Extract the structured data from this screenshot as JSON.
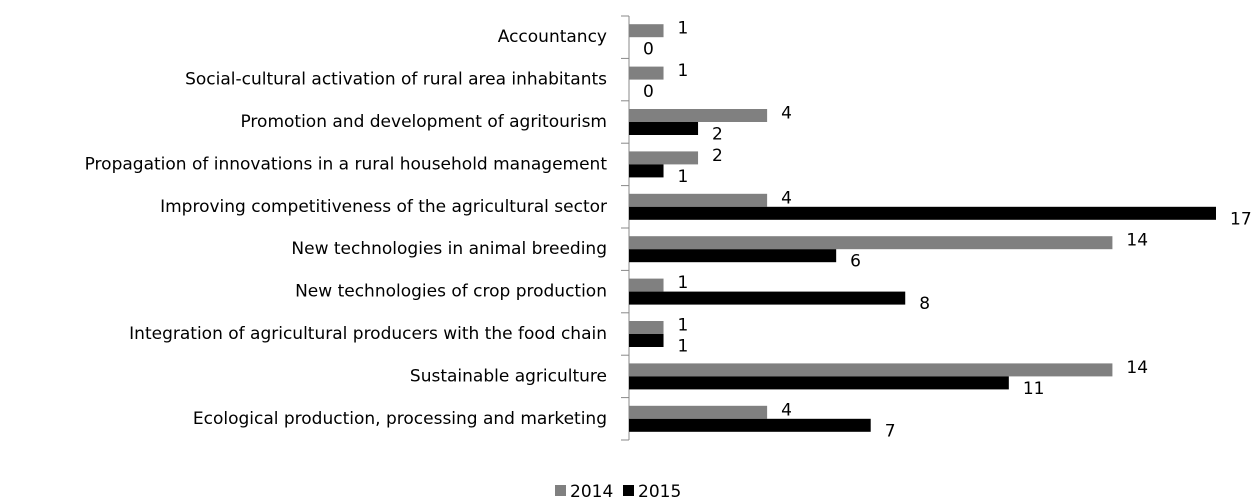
{
  "chart_data": {
    "type": "bar",
    "orientation": "horizontal",
    "categories": [
      "Accountancy",
      "Social-cultural activation of rural area inhabitants",
      "Promotion and development of agritourism",
      "Propagation of innovations in a rural household management",
      "Improving  competitiveness of the agricultural sector",
      "New technologies in animal breeding",
      "New technologies of crop production",
      "Integration of agricultural producers with the food chain",
      "Sustainable agriculture",
      "Ecological production, processing and marketing"
    ],
    "series": [
      {
        "name": "2014",
        "color": "#808080",
        "values": [
          1,
          1,
          4,
          2,
          4,
          14,
          1,
          1,
          14,
          4
        ]
      },
      {
        "name": "2015",
        "color": "#000000",
        "values": [
          0,
          0,
          2,
          1,
          17,
          6,
          8,
          1,
          11,
          7
        ]
      }
    ],
    "legend": "bottom"
  }
}
